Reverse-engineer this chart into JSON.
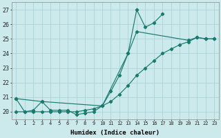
{
  "xlabel": "Humidex (Indice chaleur)",
  "background_color": "#cce9ec",
  "grid_color": "#aad4d8",
  "line_color": "#1a7a6e",
  "xlim_min": -0.5,
  "xlim_max": 23.5,
  "ylim_min": 19.5,
  "ylim_max": 27.5,
  "yticks": [
    20,
    21,
    22,
    23,
    24,
    25,
    26,
    27
  ],
  "xticks": [
    0,
    1,
    2,
    3,
    4,
    5,
    6,
    7,
    8,
    9,
    10,
    11,
    12,
    13,
    14,
    15,
    16,
    17,
    18,
    19,
    20,
    21,
    22,
    23
  ],
  "line1_x": [
    0,
    1,
    2,
    3,
    4,
    5,
    6,
    7,
    8,
    9,
    10,
    11,
    12,
    13,
    14,
    15,
    16,
    17
  ],
  "line1_y": [
    20.9,
    20.0,
    20.1,
    20.7,
    20.1,
    20.1,
    20.1,
    19.8,
    19.9,
    20.0,
    20.4,
    21.4,
    22.5,
    24.0,
    27.0,
    25.8,
    26.1,
    26.7
  ],
  "line2_x": [
    0,
    1,
    2,
    3,
    4,
    5,
    6,
    7,
    8,
    9,
    10,
    11,
    12,
    13,
    14,
    15,
    16,
    17,
    18,
    19,
    20,
    21,
    22,
    23
  ],
  "line2_y": [
    20.0,
    20.0,
    20.0,
    20.0,
    20.0,
    20.0,
    20.0,
    20.0,
    20.1,
    20.2,
    20.4,
    20.7,
    21.2,
    21.8,
    22.5,
    23.0,
    23.5,
    24.0,
    24.3,
    24.6,
    24.8,
    25.1,
    25.0,
    25.0
  ],
  "line3_x": [
    0,
    3,
    10,
    13,
    14,
    20,
    21,
    22,
    23
  ],
  "line3_y": [
    20.9,
    20.7,
    20.4,
    24.0,
    25.5,
    24.9,
    25.1,
    25.0,
    25.0
  ]
}
